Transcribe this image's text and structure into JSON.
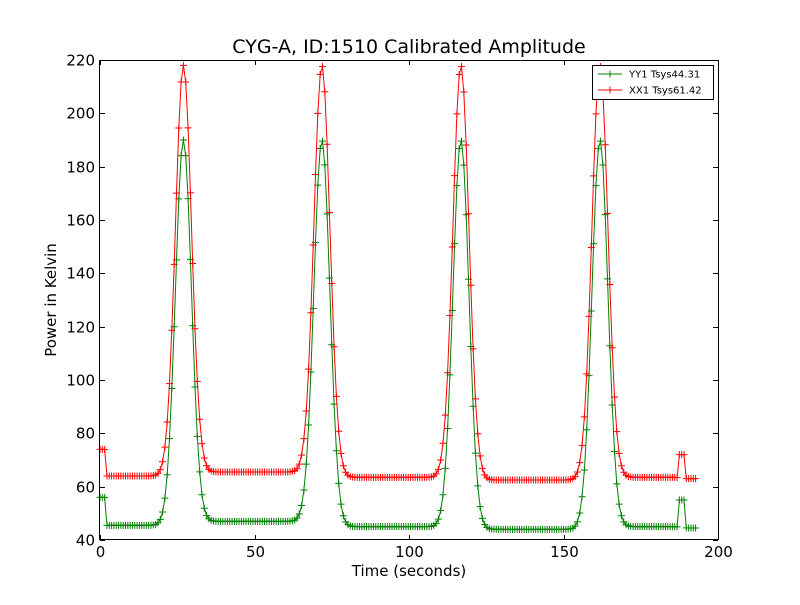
{
  "chart_data": {
    "type": "line",
    "title": "CYG-A, ID:1510 Calibrated Amplitude",
    "xlabel": "Time (seconds)",
    "ylabel": "Power in Kelvin",
    "xlim": [
      0,
      200
    ],
    "ylim": [
      40,
      220
    ],
    "xticks": [
      0,
      50,
      100,
      150,
      200
    ],
    "yticks": [
      40,
      60,
      80,
      100,
      120,
      140,
      160,
      180,
      200,
      220
    ],
    "grid": false,
    "legend_position": "top-right",
    "marker": "plus",
    "series": [
      {
        "name": "YY1 Tsys44.31",
        "color": "#008000",
        "baseline_segments": [
          {
            "from": 2,
            "to": 20,
            "value": 45.5
          },
          {
            "from": 33,
            "to": 65,
            "value": 47.0
          },
          {
            "from": 78,
            "to": 110,
            "value": 45.0
          },
          {
            "from": 123,
            "to": 155,
            "value": 44.0
          },
          {
            "from": 168,
            "to": 186,
            "value": 45.0
          },
          {
            "from": 190,
            "to": 193,
            "value": 44.5
          }
        ],
        "peaks": [
          {
            "center": 27,
            "value": 190
          },
          {
            "center": 71.8,
            "value": 190
          },
          {
            "center": 116.8,
            "value": 190
          },
          {
            "center": 161.8,
            "value": 190
          }
        ],
        "start_level": 56,
        "spike": {
          "from": 187.5,
          "to": 189,
          "value": 55
        }
      },
      {
        "name": "XX1 Tsys61.42",
        "color": "#ff0000",
        "baseline_segments": [
          {
            "from": 2,
            "to": 20,
            "value": 64.0
          },
          {
            "from": 33,
            "to": 65,
            "value": 65.5
          },
          {
            "from": 78,
            "to": 110,
            "value": 63.5
          },
          {
            "from": 123,
            "to": 155,
            "value": 62.5
          },
          {
            "from": 168,
            "to": 186,
            "value": 63.5
          },
          {
            "from": 190,
            "to": 193,
            "value": 63.0
          }
        ],
        "peaks": [
          {
            "center": 27,
            "value": 218
          },
          {
            "center": 71.8,
            "value": 218
          },
          {
            "center": 116.8,
            "value": 218
          },
          {
            "center": 161.8,
            "value": 218
          }
        ],
        "start_level": 74,
        "spike": {
          "from": 187.5,
          "to": 189,
          "value": 72
        }
      }
    ]
  }
}
